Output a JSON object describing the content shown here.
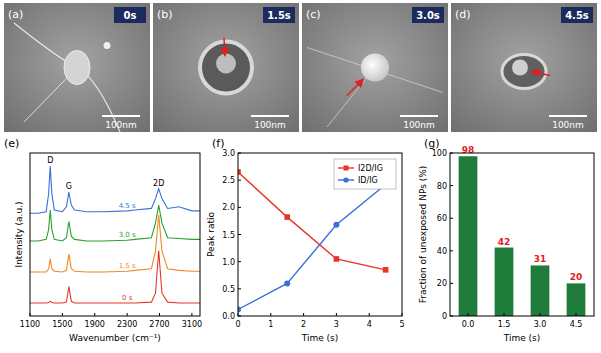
{
  "figure_panels": [
    {
      "label": "(a)",
      "time": "0s",
      "scale_bar": "100nm"
    },
    {
      "label": "(b)",
      "time": "1.5s",
      "scale_bar": "100nm"
    },
    {
      "label": "(c)",
      "time": "3.0s",
      "scale_bar": "100nm"
    },
    {
      "label": "(d)",
      "time": "4.5s",
      "scale_bar": "100nm"
    }
  ],
  "chart_data": [
    {
      "type": "line",
      "title": "(e)",
      "x_label": "Wavenumber (cm⁻¹)",
      "y_label": "Intensity (a.u.)",
      "x": [
        1100,
        1200,
        1300,
        1330,
        1350,
        1370,
        1400,
        1500,
        1550,
        1580,
        1610,
        1650,
        1800,
        2000,
        2300,
        2400,
        2600,
        2650,
        2690,
        2730,
        2800,
        2940,
        3100,
        3200
      ],
      "series": [
        {
          "name": "0 s",
          "color": "#e8352b",
          "values": [
            8,
            8,
            8,
            8.3,
            9,
            8.3,
            8,
            8,
            8.5,
            18,
            9,
            8,
            8,
            8,
            8,
            8,
            8.5,
            14,
            40,
            14,
            8.5,
            8,
            8,
            8
          ]
        },
        {
          "name": "1.5 s",
          "color": "#f08a24",
          "values": [
            27,
            27,
            27,
            29,
            35,
            29,
            27.5,
            27,
            28,
            38,
            29,
            27.5,
            27,
            27,
            27.5,
            28,
            29,
            40,
            62,
            40,
            29,
            28,
            27.5,
            27.5
          ]
        },
        {
          "name": "3.0 s",
          "color": "#2ca02c",
          "values": [
            46,
            46,
            47,
            53,
            65,
            53,
            47,
            46,
            48,
            58,
            49,
            47,
            46,
            46,
            46.5,
            47,
            48,
            57,
            68,
            57,
            48,
            47.5,
            47,
            47
          ]
        },
        {
          "name": "4.5 s",
          "color": "#3a6fd8",
          "values": [
            63,
            63,
            64,
            75,
            92,
            75,
            65,
            64,
            67,
            76,
            68,
            65,
            64,
            64,
            64.5,
            65,
            66,
            72,
            78,
            72,
            66,
            67,
            64.5,
            64.5
          ]
        }
      ],
      "annotations": [
        {
          "text": "D",
          "x": 1350,
          "y": 94
        },
        {
          "text": "G",
          "x": 1580,
          "y": 78
        },
        {
          "text": "2D",
          "x": 2690,
          "y": 80
        }
      ],
      "xlim": [
        1100,
        3200
      ],
      "xticks": [
        1100,
        1500,
        1900,
        2300,
        2700,
        3100
      ],
      "ylim": [
        0,
        100
      ],
      "tick_labels": "x"
    },
    {
      "type": "line",
      "title": "(f)",
      "x_label": "Time (s)",
      "y_label": "Peak ratio",
      "x": [
        0,
        1.5,
        3,
        4.5
      ],
      "series": [
        {
          "name": "I2D/IG",
          "color": "#e8352b",
          "marker": "square",
          "values": [
            2.65,
            1.82,
            1.05,
            0.85
          ]
        },
        {
          "name": "ID/IG",
          "color": "#3a6fd8",
          "marker": "circle",
          "values": [
            0.12,
            0.6,
            1.68,
            2.42
          ]
        }
      ],
      "xlim": [
        0,
        5
      ],
      "xticks": [
        0,
        1,
        2,
        3,
        4,
        5
      ],
      "ylim": [
        0,
        3
      ],
      "yticks": [
        {
          "value": 0,
          "label": "0.0"
        },
        0.5,
        {
          "value": 1,
          "label": "1.0"
        },
        1.5,
        {
          "value": 2,
          "label": "2.0"
        },
        2.5,
        {
          "value": 3,
          "label": "3.0"
        }
      ],
      "legend": "upper right"
    },
    {
      "type": "bar",
      "title": "(g)",
      "x_label": "Time (s)",
      "y_label": "Fraction of unexposed NPs (%)",
      "categories": [
        "0.0",
        "1.5",
        "3.0",
        "4.5"
      ],
      "values": [
        98,
        42,
        31,
        20
      ],
      "color": "#1e7b3a",
      "data_labels": true,
      "ylim": [
        0,
        100
      ],
      "yticks": [
        0,
        20,
        40,
        60,
        80,
        100
      ]
    }
  ]
}
